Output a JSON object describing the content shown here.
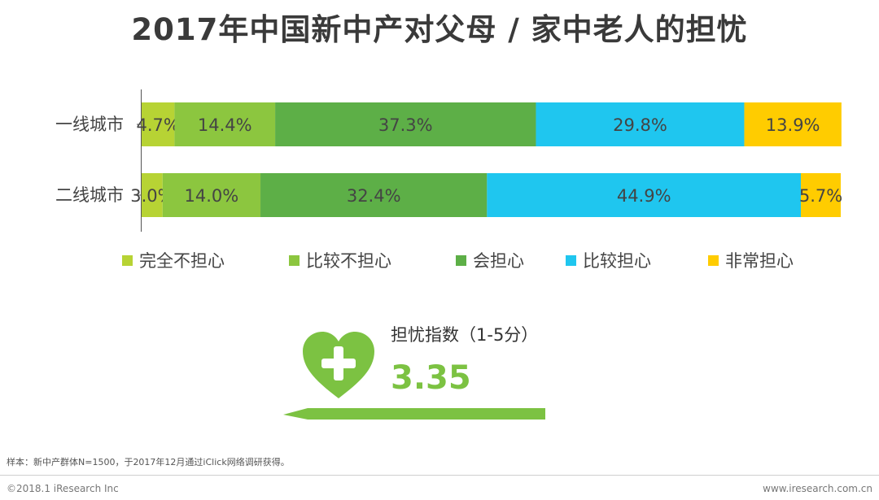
{
  "chart_data": {
    "type": "bar",
    "orientation": "horizontal",
    "stacked": true,
    "title": "2017年中国新中产对父母 / 家中老人的担忧",
    "categories": [
      "一线城市",
      "二线城市"
    ],
    "series": [
      {
        "name": "完全不担心",
        "color": "#b7d334",
        "values": [
          4.7,
          3.0
        ],
        "labels": [
          "4.7%",
          "3.0%"
        ]
      },
      {
        "name": "比较不担心",
        "color": "#8cc63f",
        "values": [
          14.4,
          14.0
        ],
        "labels": [
          "14.4%",
          "14.0%"
        ]
      },
      {
        "name": "会担心",
        "color": "#5daf47",
        "values": [
          37.3,
          32.4
        ],
        "labels": [
          "37.3%",
          "32.4%"
        ]
      },
      {
        "name": "比较担心",
        "color": "#1fc6ef",
        "values": [
          29.8,
          44.9
        ],
        "labels": [
          "29.8%",
          "44.9%"
        ]
      },
      {
        "name": "非常担心",
        "color": "#ffcc00",
        "values": [
          13.9,
          5.7
        ],
        "labels": [
          "13.9%",
          "5.7%"
        ]
      }
    ],
    "xlim": [
      0,
      100
    ],
    "legend_position": "bottom",
    "grid": false
  },
  "index": {
    "label": "担忧指数（1-5分）",
    "value": "3.35",
    "icon": "heart-plus-icon",
    "accent_color": "#7cc242"
  },
  "footer": {
    "sample_note": "样本：新中产群体N=1500，于2017年12月通过iClick网络调研获得。",
    "copyright": "©2018.1 iResearch Inc",
    "website": "www.iresearch.com.cn"
  }
}
